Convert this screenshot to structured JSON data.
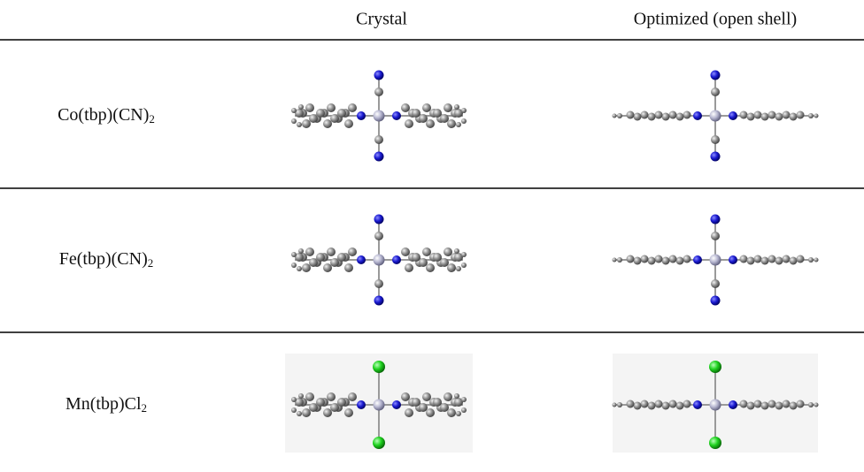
{
  "table": {
    "header": [
      "Crystal",
      "Optimized (open shell)"
    ],
    "rows": [
      {
        "label": {
          "text": "Co(tbp)(CN)",
          "sub": "2"
        }
      },
      {
        "label": {
          "text": "Fe(tbp)(CN)",
          "sub": "2"
        }
      },
      {
        "label": {
          "text": "Mn(tbp)Cl",
          "sub": "2"
        }
      }
    ]
  }
}
